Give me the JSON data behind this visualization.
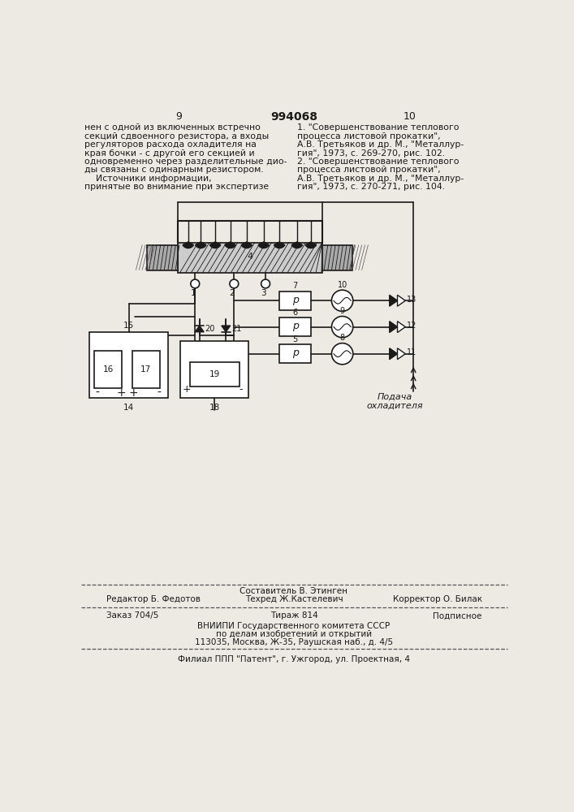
{
  "bg_color": "#ede9e3",
  "page_num_left": "9",
  "page_num_center": "994068",
  "page_num_right": "10",
  "left_text": [
    "нен с одной из включенных встречно",
    "секций сдвоенного резистора, а входы",
    "регуляторов расхода охладителя на",
    "края бочки - с другой его секцией и",
    "одновременно через разделительные дио-",
    "ды связаны с одинарным резистором.",
    "    Источники информации,",
    "принятые во внимание при экспертизе"
  ],
  "right_text": [
    "1. \"Совершенствование теплового",
    "процесса листовой прокатки\",",
    "А.В. Третьяков и др. М., \"Металлур-",
    "гия\", 1973, с. 269-270, рис. 102.",
    "2. \"Совершенствование теплового",
    "процесса листовой прокатки\",",
    "А.В. Третьяков и др. М., \"Металлур-",
    "гия\", 1973, с. 270-271, рис. 104."
  ],
  "bottom_line1": "Составитель В. Этинген",
  "bottom_left1": "Редактор Б. Федотов",
  "bottom_center1": "Техред Ж.Кастелевич",
  "bottom_right1": "Корректор О. Билак",
  "bottom_left2": "Заказ 704/5",
  "bottom_center2": "Тираж 814",
  "bottom_right2": "Подписное",
  "bottom_line3": "ВНИИПИ Государственного комитета СССР",
  "bottom_line4": "по делам изобретений и открытий",
  "bottom_line5": "113035, Москва, Ж-35, Раушская наб., д. 4/5",
  "bottom_line6": "Филиал ППП \"Патент\", г. Ужгород, ул. Проектная, 4",
  "podacha_text": "Подача\nохладителя"
}
